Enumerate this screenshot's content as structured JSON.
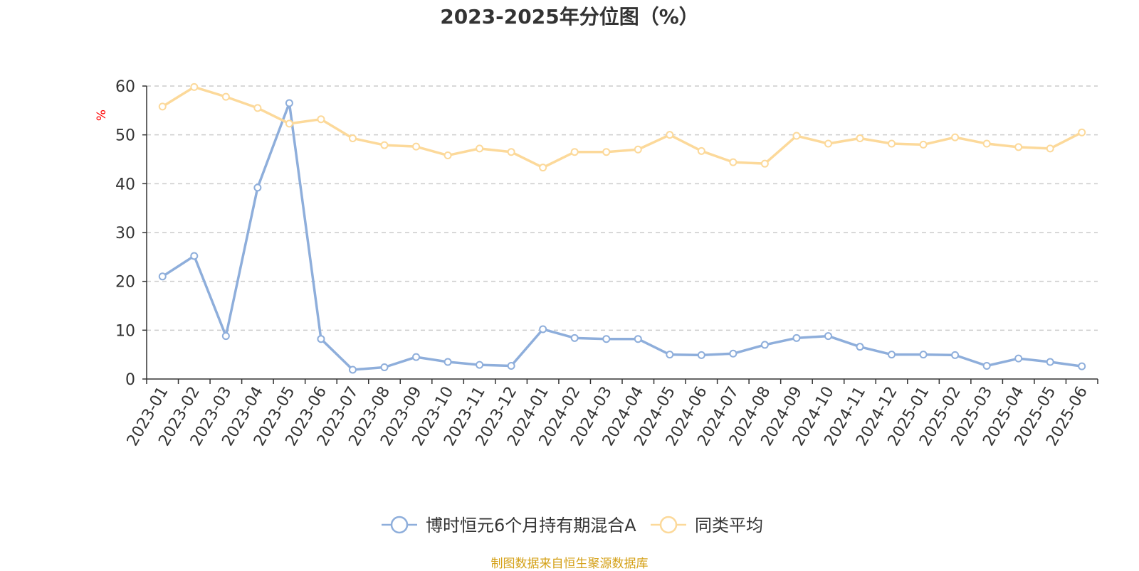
{
  "chart_data": {
    "type": "line",
    "title": "2023-2025年分位图（%）",
    "ylabel": "%",
    "ylim": [
      0,
      60
    ],
    "yticks": [
      0,
      10,
      20,
      30,
      40,
      50,
      60
    ],
    "grid": true,
    "legend_position": "bottom",
    "categories": [
      "2023-01",
      "2023-02",
      "2023-03",
      "2023-04",
      "2023-05",
      "2023-06",
      "2023-07",
      "2023-08",
      "2023-09",
      "2023-10",
      "2023-11",
      "2023-12",
      "2024-01",
      "2024-02",
      "2024-03",
      "2024-04",
      "2024-05",
      "2024-06",
      "2024-07",
      "2024-08",
      "2024-09",
      "2024-10",
      "2024-11",
      "2024-12",
      "2025-01",
      "2025-02",
      "2025-03",
      "2025-04",
      "2025-05",
      "2025-06"
    ],
    "series": [
      {
        "name": "博时恒元6个月持有期混合A",
        "color": "#8eaedb",
        "values": [
          21.0,
          25.2,
          8.8,
          39.2,
          56.5,
          8.2,
          1.9,
          2.4,
          4.5,
          3.5,
          2.9,
          2.7,
          10.2,
          8.4,
          8.2,
          8.2,
          5.0,
          4.9,
          5.2,
          7.0,
          8.4,
          8.8,
          6.6,
          5.0,
          5.0,
          4.9,
          2.7,
          4.2,
          3.5,
          2.6
        ]
      },
      {
        "name": "同类平均",
        "color": "#fcd99a",
        "values": [
          55.8,
          59.8,
          57.8,
          55.5,
          52.3,
          53.2,
          49.3,
          47.9,
          47.6,
          45.8,
          47.2,
          46.5,
          43.3,
          46.5,
          46.5,
          47.0,
          50.0,
          46.7,
          44.4,
          44.1,
          49.8,
          48.2,
          49.3,
          48.2,
          48.0,
          49.5,
          48.2,
          47.5,
          47.2,
          50.5
        ]
      }
    ]
  },
  "source_note": "制图数据来自恒生聚源数据库",
  "colors": {
    "title": "#333333",
    "axis": "#333333",
    "grid": "#cccccc",
    "ylabel": "#ff0000",
    "source_note": "#d4a017"
  }
}
